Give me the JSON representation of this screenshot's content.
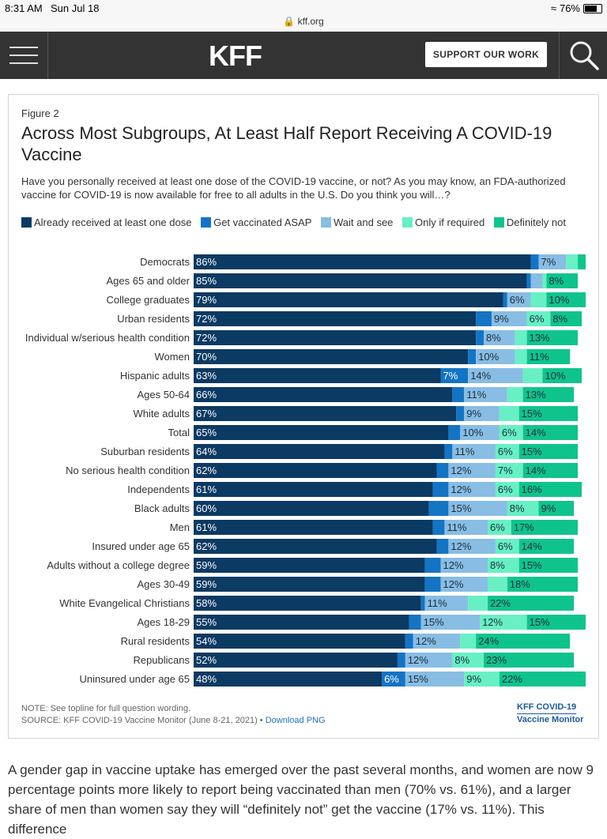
{
  "status_bar": {
    "time": "8:31 AM",
    "date": "Sun Jul 18",
    "url": "kff.org",
    "battery": "76%"
  },
  "nav": {
    "logo": "KFF",
    "support_label": "SUPPORT OUR WORK"
  },
  "figure": {
    "label": "Figure 2",
    "title": "Across Most Subgroups, At Least Half Report Receiving A COVID-19 Vaccine",
    "subtitle": "Have you personally received at least one dose of the COVID-19 vaccine, or not? As you may know, an FDA-authorized vaccine for COVID-19 is now available for free to all adults in the U.S. Do you think you will…?",
    "note": "NOTE: See topline for full question wording.",
    "source": "SOURCE: KFF COVID-19 Vaccine Monitor (June 8-21, 2021) •",
    "download_label": "Download PNG",
    "brand_line1": "KFF COVID-19",
    "brand_line2": "Vaccine Monitor"
  },
  "chart_data": {
    "type": "bar",
    "orientation": "horizontal",
    "stacked": true,
    "legend_position": "top",
    "categories": [
      "Democrats",
      "Ages 65 and older",
      "College graduates",
      "Urban residents",
      "Individual w/serious health condition",
      "Women",
      "Hispanic adults",
      "Ages 50-64",
      "White adults",
      "Total",
      "Suburban residents",
      "No serious health condition",
      "Independents",
      "Black adults",
      "Men",
      "Insured under age 65",
      "Adults without a college degree",
      "Ages 30-49",
      "White Evangelical Christians",
      "Ages 18-29",
      "Rural residents",
      "Republicans",
      "Uninsured under age 65"
    ],
    "series": [
      {
        "name": "Already received at least one dose",
        "color": "#0b3a63",
        "values": [
          86,
          85,
          79,
          72,
          72,
          70,
          63,
          66,
          67,
          65,
          64,
          62,
          61,
          60,
          61,
          62,
          59,
          59,
          58,
          55,
          54,
          52,
          48
        ]
      },
      {
        "name": "Get vaccinated ASAP",
        "color": "#1474c4",
        "values": [
          2,
          1,
          1,
          4,
          2,
          2,
          7,
          3,
          2,
          3,
          2,
          3,
          4,
          5,
          3,
          3,
          4,
          4,
          1,
          3,
          2,
          2,
          6
        ]
      },
      {
        "name": "Wait and see",
        "color": "#88bde4",
        "values": [
          7,
          3,
          6,
          9,
          8,
          10,
          14,
          11,
          9,
          10,
          11,
          12,
          12,
          15,
          11,
          12,
          12,
          12,
          11,
          15,
          12,
          12,
          15
        ]
      },
      {
        "name": "Only if required",
        "color": "#68f0c4",
        "values": [
          3,
          1,
          4,
          6,
          3,
          3,
          5,
          4,
          5,
          6,
          6,
          7,
          6,
          8,
          6,
          6,
          8,
          5,
          5,
          12,
          4,
          8,
          9
        ]
      },
      {
        "name": "Definitely not",
        "color": "#0fc48c",
        "values": [
          2,
          8,
          10,
          8,
          13,
          11,
          10,
          13,
          15,
          14,
          15,
          14,
          16,
          9,
          17,
          14,
          15,
          18,
          22,
          15,
          24,
          23,
          22
        ]
      }
    ],
    "data_labels": [
      [
        "86%",
        "",
        "7%",
        "",
        ""
      ],
      [
        "85%",
        "",
        "",
        "",
        "8%"
      ],
      [
        "79%",
        "",
        "6%",
        "",
        "10%"
      ],
      [
        "72%",
        "",
        "9%",
        "6%",
        "8%"
      ],
      [
        "72%",
        "",
        "8%",
        "",
        "13%"
      ],
      [
        "70%",
        "",
        "10%",
        "",
        "11%"
      ],
      [
        "63%",
        "7%",
        "14%",
        "",
        "10%"
      ],
      [
        "66%",
        "",
        "11%",
        "",
        "13%"
      ],
      [
        "67%",
        "",
        "9%",
        "",
        "15%"
      ],
      [
        "65%",
        "",
        "10%",
        "6%",
        "14%"
      ],
      [
        "64%",
        "",
        "11%",
        "6%",
        "15%"
      ],
      [
        "62%",
        "",
        "12%",
        "7%",
        "14%"
      ],
      [
        "61%",
        "",
        "12%",
        "6%",
        "16%"
      ],
      [
        "60%",
        "",
        "15%",
        "8%",
        "9%"
      ],
      [
        "61%",
        "",
        "11%",
        "6%",
        "17%"
      ],
      [
        "62%",
        "",
        "12%",
        "6%",
        "14%"
      ],
      [
        "59%",
        "",
        "12%",
        "8%",
        "15%"
      ],
      [
        "59%",
        "",
        "12%",
        "",
        "18%"
      ],
      [
        "58%",
        "",
        "11%",
        "",
        "22%"
      ],
      [
        "55%",
        "",
        "15%",
        "12%",
        "15%"
      ],
      [
        "54%",
        "",
        "12%",
        "",
        "24%"
      ],
      [
        "52%",
        "",
        "12%",
        "8%",
        "23%"
      ],
      [
        "48%",
        "6%",
        "15%",
        "9%",
        "22%"
      ]
    ],
    "xlim": [
      0,
      100
    ]
  },
  "article": {
    "text": "A gender gap in vaccine uptake has emerged over the past several months, and women are now 9 percentage points more likely to report being vaccinated than men (70% vs. 61%), and a larger share of men than women say they will “definitely not” get the vaccine (17% vs. 11%). This difference"
  }
}
